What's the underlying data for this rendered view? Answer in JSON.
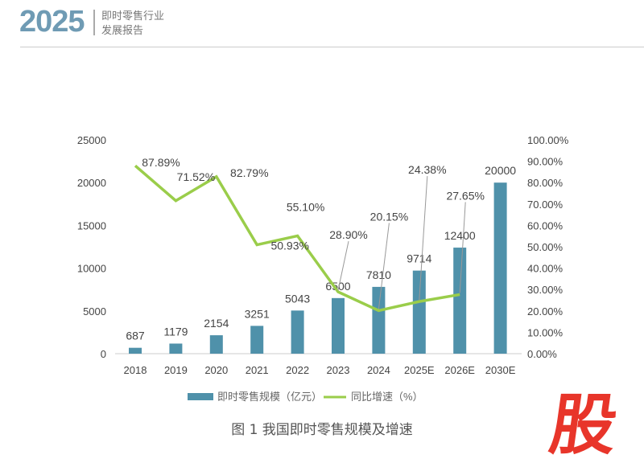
{
  "header": {
    "year": "2025",
    "title_line1": "即时零售行业",
    "title_line2": "发展报告"
  },
  "caption": "图 1 我国即时零售规模及增速",
  "watermark": "股",
  "chart_data": {
    "type": "bar+line",
    "title": "我国即时零售规模及增速",
    "categories": [
      "2018",
      "2019",
      "2020",
      "2021",
      "2022",
      "2023",
      "2024",
      "2025E",
      "2026E",
      "2030E"
    ],
    "series": [
      {
        "name": "即时零售规模（亿元）",
        "type": "bar",
        "axis": "left",
        "color": "#4f91aa",
        "values": [
          687,
          1179,
          2154,
          3251,
          5043,
          6500,
          7810,
          9714,
          12400,
          20000
        ]
      },
      {
        "name": "同比增速（%）",
        "type": "line",
        "axis": "right",
        "color": "#9acd4a",
        "values": [
          87.89,
          71.52,
          82.79,
          50.93,
          55.1,
          28.9,
          20.15,
          24.38,
          27.65,
          null
        ],
        "labels": [
          "87.89%",
          "71.52%",
          "82.79%",
          "50.93%",
          "55.10%",
          "28.90%",
          "20.15%",
          "24.38%",
          "27.65%",
          ""
        ]
      }
    ],
    "ylim": [
      0,
      25000
    ],
    "yticks": [
      "0",
      "5000",
      "10000",
      "15000",
      "20000",
      "25000"
    ],
    "y2lim": [
      0,
      100
    ],
    "y2ticks": [
      "0.00%",
      "10.00%",
      "20.00%",
      "30.00%",
      "40.00%",
      "50.00%",
      "60.00%",
      "70.00%",
      "80.00%",
      "90.00%",
      "100.00%"
    ],
    "legend": "bottom",
    "grid": false
  }
}
